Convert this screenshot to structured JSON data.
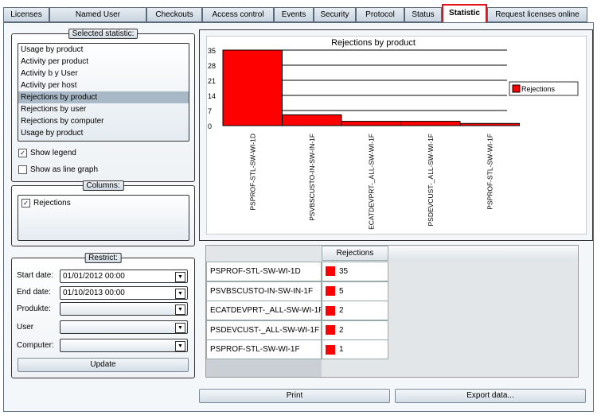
{
  "tabs": [
    {
      "label": "Licenses"
    },
    {
      "label": "Named User"
    },
    {
      "label": "Checkouts"
    },
    {
      "label": "Access control"
    },
    {
      "label": "Events"
    },
    {
      "label": "Security"
    },
    {
      "label": "Protocol"
    },
    {
      "label": "Status"
    },
    {
      "label": "Statistic",
      "active": true
    },
    {
      "label": "Request licenses online"
    }
  ],
  "selected_statistic": {
    "label": "Selected statistic:",
    "items": [
      "Usage by product",
      "Activity per product",
      "Activity b y User",
      "Activity per host",
      "Rejections by product",
      "Rejections by user",
      "Rejections by computer",
      "Usage by product"
    ],
    "selected": "Rejections by product",
    "show_legend": {
      "label": "Show legend",
      "checked": true
    },
    "show_line": {
      "label": "Show as line graph",
      "checked": false
    }
  },
  "columns": {
    "label": "Columns:",
    "items": [
      {
        "label": "Rejections",
        "checked": true
      }
    ]
  },
  "restrict": {
    "label": "Restrict:",
    "start_label": "Start date:",
    "start_value": "01/01/2012 00:00",
    "end_label": "End date:",
    "end_value": "01/10/2013 00:00",
    "product_label": "Produkte:",
    "user_label": "User",
    "computer_label": "Computer:",
    "update": "Update"
  },
  "chart_data": {
    "type": "bar",
    "title": "Rejections by product",
    "categories": [
      "PSPROF-STL-SW-WI-1D",
      "PSVBSCUSTO-IN-SW-IN-1F",
      "ECATDEVPRT-_ALL-SW-WI-1F",
      "PSDEVCUST-_ALL-SW-WI-1F",
      "PSPROF-STL-SW-WI-1F"
    ],
    "series": [
      {
        "name": "Rejections",
        "values": [
          35,
          5,
          2,
          2,
          1
        ],
        "color": "#ff0000"
      }
    ],
    "yticks": [
      "0",
      "7",
      "14",
      "21",
      "28",
      "35"
    ],
    "ylim": [
      0,
      35
    ],
    "grid": true,
    "legend": "right"
  },
  "table": {
    "header": "Rejections",
    "rows": [
      {
        "name": "PSPROF-STL-SW-WI-1D",
        "value": "35"
      },
      {
        "name": "PSVBSCUSTO-IN-SW-IN-1F",
        "value": "5"
      },
      {
        "name": "ECATDEVPRT-_ALL-SW-WI-1F",
        "value": "2"
      },
      {
        "name": "PSDEVCUST-_ALL-SW-WI-1F",
        "value": "2"
      },
      {
        "name": "PSPROF-STL-SW-WI-1F",
        "value": "1"
      }
    ]
  },
  "buttons": {
    "print": "Print",
    "export": "Export data..."
  }
}
